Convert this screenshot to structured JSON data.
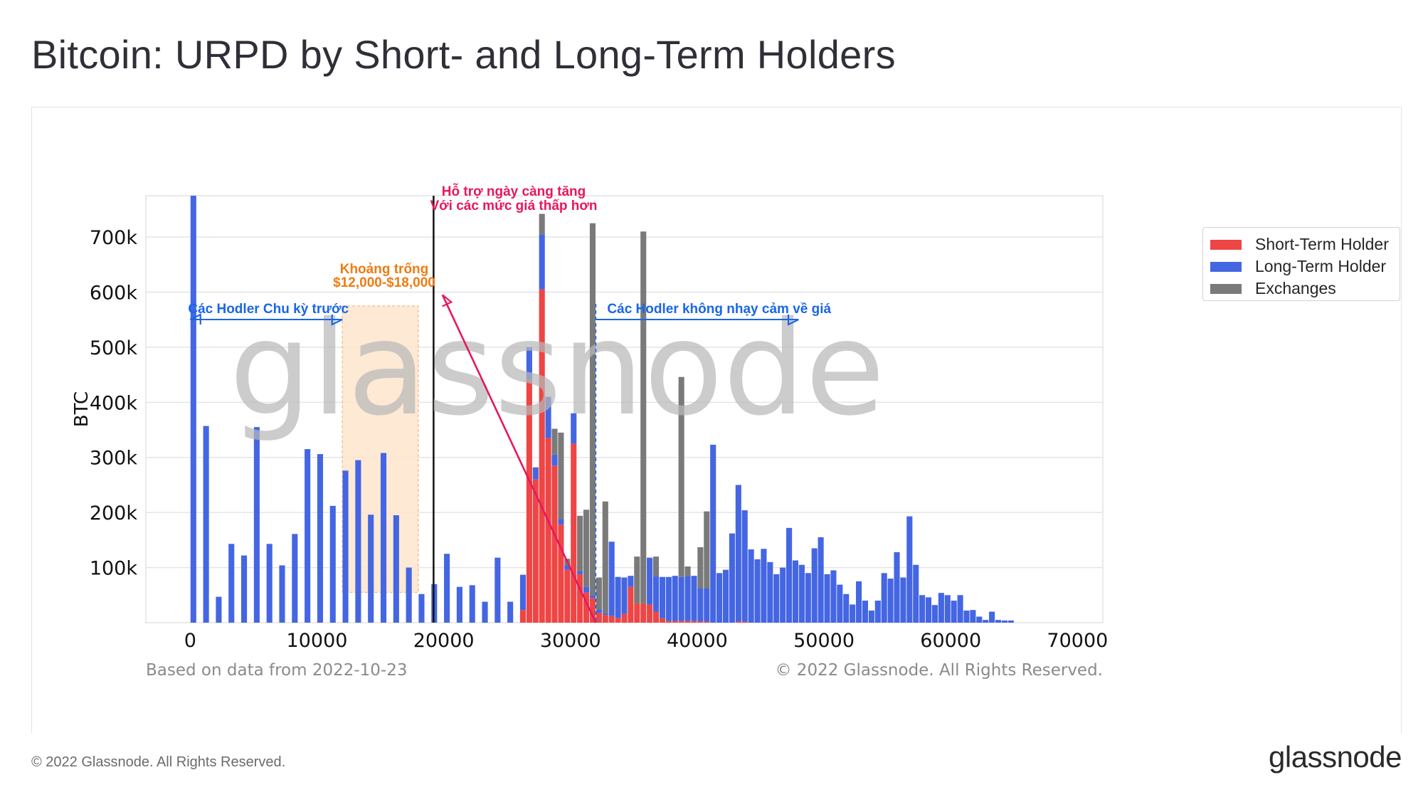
{
  "page": {
    "title": "Bitcoin: URPD by Short- and Long-Term Holders",
    "footer": "© 2022 Glassnode. All Rights Reserved.",
    "brand": "glassnode",
    "watermark": "glassnode"
  },
  "chart_data": {
    "type": "bar",
    "stacked": true,
    "title": "",
    "xlabel": "",
    "ylabel": "BTC",
    "xlim": [
      -3500,
      72000
    ],
    "ylim": [
      0,
      775000
    ],
    "x_ticks": [
      0,
      10000,
      20000,
      30000,
      40000,
      50000,
      60000,
      70000
    ],
    "x_tick_labels": [
      "0",
      "10000",
      "20000",
      "30000",
      "40000",
      "50000",
      "60000",
      "70000"
    ],
    "y_ticks": [
      100000,
      200000,
      300000,
      400000,
      500000,
      600000,
      700000
    ],
    "y_tick_labels": [
      "100k",
      "200k",
      "300k",
      "400k",
      "500k",
      "600k",
      "700k"
    ],
    "grid": true,
    "legend_position": "top-right",
    "bin_width": 500,
    "note_left": "Based on data from 2022-10-23",
    "note_right": "© 2022 Glassnode. All Rights Reserved.",
    "colors": {
      "short_term": "#ee4545",
      "long_term": "#4466e2",
      "exchanges": "#7a7a7a",
      "annot_pink": "#e8175d",
      "annot_orange": "#f07b12",
      "annot_blue": "#1a66e8",
      "gap_fill": "#fde5cc"
    },
    "series": [
      {
        "name": "Short-Term Holder",
        "color": "#ee4545"
      },
      {
        "name": "Long-Term Holder",
        "color": "#4466e2"
      },
      {
        "name": "Exchanges",
        "color": "#7a7a7a"
      }
    ],
    "bins": [
      {
        "x": 250,
        "sth": 0,
        "lth": 775000,
        "exch": 0
      },
      {
        "x": 1250,
        "sth": 0,
        "lth": 357000,
        "exch": 0
      },
      {
        "x": 2250,
        "sth": 0,
        "lth": 47000,
        "exch": 0
      },
      {
        "x": 3250,
        "sth": 0,
        "lth": 143000,
        "exch": 0
      },
      {
        "x": 4250,
        "sth": 0,
        "lth": 122000,
        "exch": 0
      },
      {
        "x": 5250,
        "sth": 0,
        "lth": 355000,
        "exch": 0
      },
      {
        "x": 6250,
        "sth": 0,
        "lth": 143000,
        "exch": 0
      },
      {
        "x": 7250,
        "sth": 0,
        "lth": 104000,
        "exch": 0
      },
      {
        "x": 8250,
        "sth": 0,
        "lth": 161000,
        "exch": 0
      },
      {
        "x": 9250,
        "sth": 0,
        "lth": 315000,
        "exch": 0
      },
      {
        "x": 10250,
        "sth": 0,
        "lth": 306000,
        "exch": 0
      },
      {
        "x": 11250,
        "sth": 0,
        "lth": 212000,
        "exch": 0
      },
      {
        "x": 12250,
        "sth": 0,
        "lth": 276000,
        "exch": 0
      },
      {
        "x": 13250,
        "sth": 0,
        "lth": 295000,
        "exch": 0
      },
      {
        "x": 14250,
        "sth": 0,
        "lth": 196000,
        "exch": 0
      },
      {
        "x": 15250,
        "sth": 0,
        "lth": 308000,
        "exch": 0
      },
      {
        "x": 16250,
        "sth": 0,
        "lth": 195000,
        "exch": 0
      },
      {
        "x": 17250,
        "sth": 0,
        "lth": 100000,
        "exch": 0
      },
      {
        "x": 18250,
        "sth": 0,
        "lth": 52000,
        "exch": 0
      },
      {
        "x": 19250,
        "sth": 0,
        "lth": 70000,
        "exch": 0
      },
      {
        "x": 20250,
        "sth": 0,
        "lth": 125000,
        "exch": 0
      },
      {
        "x": 21250,
        "sth": 0,
        "lth": 65000,
        "exch": 0
      },
      {
        "x": 22250,
        "sth": 0,
        "lth": 68000,
        "exch": 0
      },
      {
        "x": 23250,
        "sth": 0,
        "lth": 38000,
        "exch": 0
      },
      {
        "x": 24250,
        "sth": 0,
        "lth": 118000,
        "exch": 0
      },
      {
        "x": 25250,
        "sth": 0,
        "lth": 38000,
        "exch": 0
      },
      {
        "x": 26250,
        "sth": 23000,
        "lth": 64000,
        "exch": 0
      },
      {
        "x": 26750,
        "sth": 440000,
        "lth": 60000,
        "exch": 0
      },
      {
        "x": 27250,
        "sth": 260000,
        "lth": 22000,
        "exch": 0
      },
      {
        "x": 27750,
        "sth": 605000,
        "lth": 100000,
        "exch": 37000
      },
      {
        "x": 28250,
        "sth": 335000,
        "lth": 75000,
        "exch": 0
      },
      {
        "x": 28750,
        "sth": 285000,
        "lth": 20000,
        "exch": 47000
      },
      {
        "x": 29250,
        "sth": 178000,
        "lth": 10000,
        "exch": 157000
      },
      {
        "x": 29750,
        "sth": 96000,
        "lth": 8000,
        "exch": 12000
      },
      {
        "x": 30250,
        "sth": 325000,
        "lth": 55000,
        "exch": 0
      },
      {
        "x": 30750,
        "sth": 88000,
        "lth": 6000,
        "exch": 100000
      },
      {
        "x": 31250,
        "sth": 55000,
        "lth": 10000,
        "exch": 140000
      },
      {
        "x": 31750,
        "sth": 45000,
        "lth": 5000,
        "exch": 675000
      },
      {
        "x": 32250,
        "sth": 18000,
        "lth": 6000,
        "exch": 58000
      },
      {
        "x": 32750,
        "sth": 14000,
        "lth": 3000,
        "exch": 203000
      },
      {
        "x": 33250,
        "sth": 12000,
        "lth": 135000,
        "exch": 0
      },
      {
        "x": 33750,
        "sth": 8000,
        "lth": 75000,
        "exch": 0
      },
      {
        "x": 34250,
        "sth": 16000,
        "lth": 66000,
        "exch": 0
      },
      {
        "x": 34750,
        "sth": 65000,
        "lth": 20000,
        "exch": 0
      },
      {
        "x": 35250,
        "sth": 35000,
        "lth": 0,
        "exch": 85000
      },
      {
        "x": 35750,
        "sth": 35000,
        "lth": 0,
        "exch": 675000
      },
      {
        "x": 36250,
        "sth": 33000,
        "lth": 85000,
        "exch": 0
      },
      {
        "x": 36750,
        "sth": 20000,
        "lth": 65000,
        "exch": 35000
      },
      {
        "x": 37250,
        "sth": 8000,
        "lth": 75000,
        "exch": 0
      },
      {
        "x": 37750,
        "sth": 3000,
        "lth": 80000,
        "exch": 0
      },
      {
        "x": 38250,
        "sth": 3000,
        "lth": 82000,
        "exch": 0
      },
      {
        "x": 38750,
        "sth": 3000,
        "lth": 80000,
        "exch": 363000
      },
      {
        "x": 39250,
        "sth": 3000,
        "lth": 82000,
        "exch": 17000
      },
      {
        "x": 39750,
        "sth": 3000,
        "lth": 82000,
        "exch": 0
      },
      {
        "x": 40250,
        "sth": 2000,
        "lth": 60000,
        "exch": 75000
      },
      {
        "x": 40750,
        "sth": 2000,
        "lth": 60000,
        "exch": 140000
      },
      {
        "x": 41250,
        "sth": 0,
        "lth": 323000,
        "exch": 0
      },
      {
        "x": 41750,
        "sth": 0,
        "lth": 90000,
        "exch": 0
      },
      {
        "x": 42250,
        "sth": 0,
        "lth": 96000,
        "exch": 0
      },
      {
        "x": 42750,
        "sth": 0,
        "lth": 162000,
        "exch": 0
      },
      {
        "x": 43250,
        "sth": 2000,
        "lth": 248000,
        "exch": 0
      },
      {
        "x": 43750,
        "sth": 2000,
        "lth": 202000,
        "exch": 0
      },
      {
        "x": 44250,
        "sth": 0,
        "lth": 133000,
        "exch": 0
      },
      {
        "x": 44750,
        "sth": 0,
        "lth": 115000,
        "exch": 0
      },
      {
        "x": 45250,
        "sth": 0,
        "lth": 134000,
        "exch": 0
      },
      {
        "x": 45750,
        "sth": 0,
        "lth": 110000,
        "exch": 0
      },
      {
        "x": 46250,
        "sth": 0,
        "lth": 88000,
        "exch": 0
      },
      {
        "x": 46750,
        "sth": 0,
        "lth": 100000,
        "exch": 0
      },
      {
        "x": 47250,
        "sth": 0,
        "lth": 172000,
        "exch": 0
      },
      {
        "x": 47750,
        "sth": 0,
        "lth": 113000,
        "exch": 0
      },
      {
        "x": 48250,
        "sth": 0,
        "lth": 105000,
        "exch": 0
      },
      {
        "x": 48750,
        "sth": 0,
        "lth": 90000,
        "exch": 0
      },
      {
        "x": 49250,
        "sth": 0,
        "lth": 135000,
        "exch": 0
      },
      {
        "x": 49750,
        "sth": 0,
        "lth": 155000,
        "exch": 0
      },
      {
        "x": 50250,
        "sth": 0,
        "lth": 88000,
        "exch": 0
      },
      {
        "x": 50750,
        "sth": 0,
        "lth": 95000,
        "exch": 0
      },
      {
        "x": 51250,
        "sth": 0,
        "lth": 69000,
        "exch": 0
      },
      {
        "x": 51750,
        "sth": 0,
        "lth": 52000,
        "exch": 0
      },
      {
        "x": 52250,
        "sth": 0,
        "lth": 33000,
        "exch": 0
      },
      {
        "x": 52750,
        "sth": 0,
        "lth": 75000,
        "exch": 0
      },
      {
        "x": 53250,
        "sth": 0,
        "lth": 40000,
        "exch": 0
      },
      {
        "x": 53750,
        "sth": 0,
        "lth": 22000,
        "exch": 0
      },
      {
        "x": 54250,
        "sth": 0,
        "lth": 40000,
        "exch": 0
      },
      {
        "x": 54750,
        "sth": 0,
        "lth": 90000,
        "exch": 0
      },
      {
        "x": 55250,
        "sth": 0,
        "lth": 80000,
        "exch": 0
      },
      {
        "x": 55750,
        "sth": 0,
        "lth": 128000,
        "exch": 0
      },
      {
        "x": 56250,
        "sth": 0,
        "lth": 82000,
        "exch": 0
      },
      {
        "x": 56750,
        "sth": 0,
        "lth": 193000,
        "exch": 0
      },
      {
        "x": 57250,
        "sth": 0,
        "lth": 105000,
        "exch": 0
      },
      {
        "x": 57750,
        "sth": 0,
        "lth": 50000,
        "exch": 0
      },
      {
        "x": 58250,
        "sth": 0,
        "lth": 46000,
        "exch": 0
      },
      {
        "x": 58750,
        "sth": 0,
        "lth": 32000,
        "exch": 0
      },
      {
        "x": 59250,
        "sth": 0,
        "lth": 54000,
        "exch": 0
      },
      {
        "x": 59750,
        "sth": 0,
        "lth": 50000,
        "exch": 0
      },
      {
        "x": 60250,
        "sth": 0,
        "lth": 40000,
        "exch": 0
      },
      {
        "x": 60750,
        "sth": 0,
        "lth": 50000,
        "exch": 0
      },
      {
        "x": 61250,
        "sth": 0,
        "lth": 22000,
        "exch": 0
      },
      {
        "x": 61750,
        "sth": 0,
        "lth": 23000,
        "exch": 0
      },
      {
        "x": 62250,
        "sth": 0,
        "lth": 11000,
        "exch": 0
      },
      {
        "x": 62750,
        "sth": 0,
        "lth": 5000,
        "exch": 0
      },
      {
        "x": 63250,
        "sth": 0,
        "lth": 20000,
        "exch": 0
      },
      {
        "x": 63750,
        "sth": 0,
        "lth": 5000,
        "exch": 0
      },
      {
        "x": 64250,
        "sth": 0,
        "lth": 4000,
        "exch": 0
      },
      {
        "x": 64750,
        "sth": 0,
        "lth": 4000,
        "exch": 0
      }
    ],
    "annotations": [
      {
        "name": "gap-label",
        "lines": [
          "Khoảng trống",
          "$12,000-$18,000"
        ],
        "color": "#f07b12"
      },
      {
        "name": "support-label",
        "lines": [
          "Hỗ trợ ngày càng tăng",
          "Với các mức giá thấp hơn"
        ],
        "color": "#e8175d"
      },
      {
        "name": "prev-cycle-label",
        "lines": [
          "Các Hodler Chu kỳ trước"
        ],
        "color": "#1a66e8"
      },
      {
        "name": "insensitive-label",
        "lines": [
          "Các Hodler không nhạy cảm về giá"
        ],
        "color": "#1a66e8"
      }
    ]
  }
}
